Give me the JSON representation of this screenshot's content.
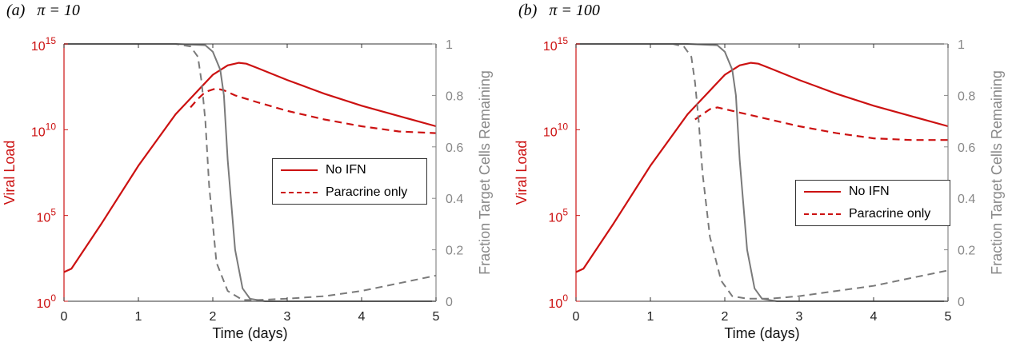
{
  "chart_data": [
    {
      "type": "line",
      "panel_label": "(a)   π = 10",
      "xlabel": "Time (days)",
      "ylabel_left": "Viral Load",
      "ylabel_right": "Fraction Target Cells Remaining",
      "xlim": [
        0,
        5
      ],
      "xticks": [
        "0",
        "1",
        "2",
        "3",
        "4",
        "5"
      ],
      "ylim_left_log10": [
        0,
        15
      ],
      "yticks_left": [
        {
          "base": "10",
          "exp": "0"
        },
        {
          "base": "10",
          "exp": "5"
        },
        {
          "base": "10",
          "exp": "10"
        },
        {
          "base": "10",
          "exp": "15"
        }
      ],
      "ylim_right": [
        0,
        1
      ],
      "yticks_right": [
        "0",
        "0.2",
        "0.4",
        "0.6",
        "0.8",
        "1"
      ],
      "legend": [
        "No IFN",
        "Paracrine only"
      ],
      "colors": {
        "viral": "#cc1111",
        "cells": "#7a7a7a",
        "axis_left": "#cc1111",
        "axis_right": "#888888"
      },
      "series": [
        {
          "name": "No IFN",
          "axis": "left",
          "style": "solid",
          "x": [
            0,
            0.1,
            0.5,
            1,
            1.5,
            2,
            2.2,
            2.35,
            2.45,
            2.6,
            3,
            3.5,
            4,
            4.5,
            5
          ],
          "y": [
            1.7,
            1.9,
            4.5,
            7.9,
            10.9,
            13.2,
            13.75,
            13.9,
            13.85,
            13.6,
            12.9,
            12.1,
            11.4,
            10.8,
            10.2
          ]
        },
        {
          "name": "Paracrine only",
          "axis": "left",
          "style": "dashed",
          "x": [
            1.7,
            1.8,
            1.9,
            2.0,
            2.05,
            2.15,
            2.3,
            2.6,
            3,
            3.5,
            4,
            4.5,
            5
          ],
          "y": [
            11.3,
            11.8,
            12.2,
            12.35,
            12.4,
            12.3,
            12.0,
            11.6,
            11.1,
            10.6,
            10.2,
            9.9,
            9.8
          ]
        },
        {
          "name": "No IFN",
          "axis": "right",
          "style": "solid",
          "x": [
            0,
            1.5,
            1.9,
            2.0,
            2.1,
            2.15,
            2.2,
            2.3,
            2.4,
            2.5,
            2.7,
            3,
            5
          ],
          "y": [
            1.0,
            1.0,
            0.995,
            0.97,
            0.9,
            0.8,
            0.55,
            0.2,
            0.05,
            0.01,
            0.0,
            0.0,
            0.0
          ]
        },
        {
          "name": "Paracrine only",
          "axis": "right",
          "style": "dashed",
          "x": [
            0,
            1.5,
            1.7,
            1.8,
            1.85,
            1.9,
            1.95,
            2.05,
            2.2,
            2.4,
            2.6,
            3,
            3.5,
            4,
            4.5,
            5
          ],
          "y": [
            1.0,
            1.0,
            0.99,
            0.95,
            0.85,
            0.7,
            0.45,
            0.15,
            0.04,
            0.005,
            0.005,
            0.01,
            0.02,
            0.04,
            0.07,
            0.1
          ]
        }
      ]
    },
    {
      "type": "line",
      "panel_label": "(b)   π = 100",
      "xlabel": "Time (days)",
      "ylabel_left": "Viral Load",
      "ylabel_right": "Fraction Target Cells Remaining",
      "xlim": [
        0,
        5
      ],
      "xticks": [
        "0",
        "1",
        "2",
        "3",
        "4",
        "5"
      ],
      "ylim_left_log10": [
        0,
        15
      ],
      "yticks_left": [
        {
          "base": "10",
          "exp": "0"
        },
        {
          "base": "10",
          "exp": "5"
        },
        {
          "base": "10",
          "exp": "10"
        },
        {
          "base": "10",
          "exp": "15"
        }
      ],
      "ylim_right": [
        0,
        1
      ],
      "yticks_right": [
        "0",
        "0.2",
        "0.4",
        "0.6",
        "0.8",
        "1"
      ],
      "legend": [
        "No IFN",
        "Paracrine only"
      ],
      "colors": {
        "viral": "#cc1111",
        "cells": "#7a7a7a",
        "axis_left": "#cc1111",
        "axis_right": "#888888"
      },
      "series": [
        {
          "name": "No IFN",
          "axis": "left",
          "style": "solid",
          "x": [
            0,
            0.1,
            0.5,
            1,
            1.5,
            2,
            2.2,
            2.35,
            2.45,
            2.6,
            3,
            3.5,
            4,
            4.5,
            5
          ],
          "y": [
            1.7,
            1.9,
            4.5,
            7.9,
            10.9,
            13.2,
            13.75,
            13.9,
            13.85,
            13.6,
            12.9,
            12.1,
            11.4,
            10.8,
            10.2
          ]
        },
        {
          "name": "Paracrine only",
          "axis": "left",
          "style": "dashed",
          "x": [
            1.6,
            1.7,
            1.8,
            1.9,
            2.0,
            2.2,
            2.5,
            3,
            3.5,
            4,
            4.5,
            5
          ],
          "y": [
            10.6,
            10.9,
            11.2,
            11.3,
            11.2,
            11.0,
            10.7,
            10.2,
            9.8,
            9.5,
            9.4,
            9.4
          ]
        },
        {
          "name": "No IFN",
          "axis": "right",
          "style": "solid",
          "x": [
            0,
            1.5,
            1.9,
            2.0,
            2.1,
            2.15,
            2.2,
            2.3,
            2.4,
            2.5,
            2.7,
            3,
            5
          ],
          "y": [
            1.0,
            1.0,
            0.995,
            0.97,
            0.9,
            0.8,
            0.55,
            0.2,
            0.05,
            0.01,
            0.0,
            0.0,
            0.0
          ]
        },
        {
          "name": "Paracrine only",
          "axis": "right",
          "style": "dashed",
          "x": [
            0,
            1.3,
            1.45,
            1.55,
            1.6,
            1.65,
            1.7,
            1.8,
            1.95,
            2.1,
            2.3,
            2.6,
            3,
            3.5,
            4,
            4.5,
            5
          ],
          "y": [
            1.0,
            1.0,
            0.99,
            0.95,
            0.85,
            0.7,
            0.5,
            0.25,
            0.08,
            0.02,
            0.01,
            0.01,
            0.02,
            0.04,
            0.06,
            0.09,
            0.12
          ]
        }
      ]
    }
  ]
}
